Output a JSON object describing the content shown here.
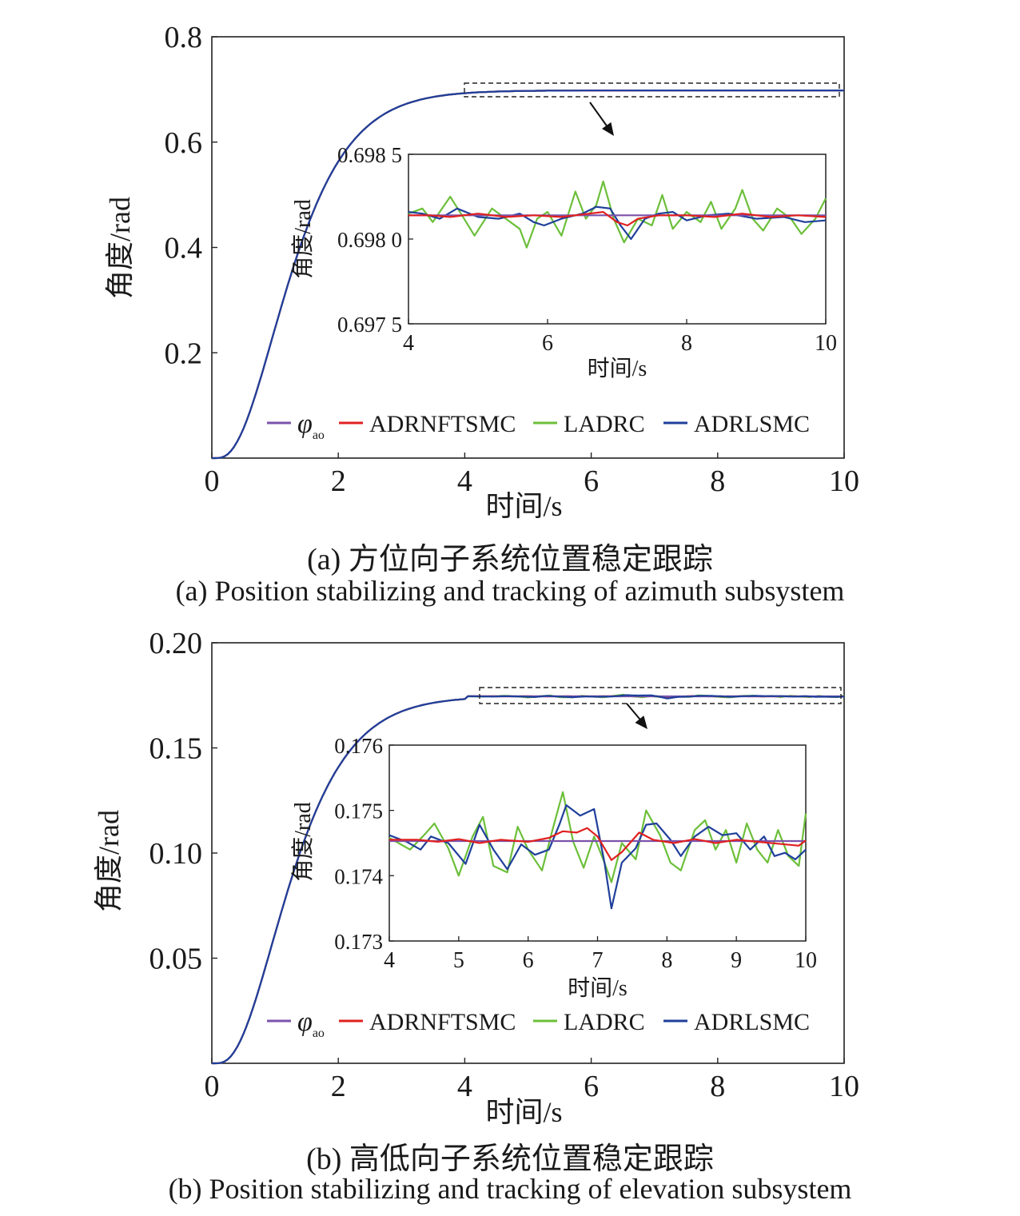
{
  "chart_data": [
    {
      "type": "line",
      "id": "a",
      "xlabel": "时间/s",
      "ylabel": "角度/rad",
      "xlim": [
        0,
        10
      ],
      "ylim": [
        0,
        0.8
      ],
      "xticks": [
        0,
        2,
        4,
        6,
        8,
        10
      ],
      "xtick_labels": [
        "0",
        "2",
        "4",
        "6",
        "8",
        "10"
      ],
      "yticks": [
        0.2,
        0.4,
        0.6,
        0.8
      ],
      "ytick_labels": [
        "0.2",
        "0.4",
        "0.6",
        "0.8"
      ],
      "final_value": 0.6981,
      "legend": [
        "φao",
        "ADRNFTSMC",
        "LADRC",
        "ADRLSMC"
      ],
      "legend_position": "bottom",
      "caption_zh": "(a) 方位向子系统位置稳定跟踪",
      "caption_en": "(a) Position stabilizing and tracking of azimuth subsystem",
      "series": [
        {
          "name": "φao",
          "color": "#7b52ab"
        },
        {
          "name": "ADRNFTSMC",
          "color": "#e02020"
        },
        {
          "name": "LADRC",
          "color": "#6cbf3a"
        },
        {
          "name": "ADRLSMC",
          "color": "#1f3f9a"
        }
      ],
      "inset": {
        "xlabel": "时间/s",
        "ylabel": "角度/rad",
        "xlim": [
          4,
          10
        ],
        "ylim": [
          0.6975,
          0.6985
        ],
        "xticks": [
          4,
          6,
          8,
          10
        ],
        "xtick_labels": [
          "4",
          "6",
          "8",
          "10"
        ],
        "yticks": [
          0.6975,
          0.698,
          0.6985
        ],
        "ytick_labels": [
          "0.697 5",
          "0.698 0",
          "0.698 5"
        ],
        "reference": 0.69814,
        "series": [
          {
            "name": "φao",
            "values": [
              [
                4,
                0.69814
              ],
              [
                10,
                0.69814
              ]
            ]
          },
          {
            "name": "ADRNFTSMC",
            "values": [
              [
                4,
                0.69814
              ],
              [
                4.3,
                0.69814
              ],
              [
                4.6,
                0.69813
              ],
              [
                5.0,
                0.69815
              ],
              [
                5.4,
                0.69813
              ],
              [
                5.8,
                0.69814
              ],
              [
                6.2,
                0.69813
              ],
              [
                6.6,
                0.69815
              ],
              [
                6.8,
                0.69816
              ],
              [
                7.0,
                0.6981
              ],
              [
                7.15,
                0.69808
              ],
              [
                7.3,
                0.69812
              ],
              [
                7.6,
                0.69814
              ],
              [
                8.0,
                0.69814
              ],
              [
                8.4,
                0.69813
              ],
              [
                8.8,
                0.69815
              ],
              [
                9.2,
                0.69813
              ],
              [
                9.6,
                0.69814
              ],
              [
                10,
                0.69813
              ]
            ]
          },
          {
            "name": "LADRC",
            "values": [
              [
                4,
                0.69815
              ],
              [
                4.2,
                0.69818
              ],
              [
                4.35,
                0.6981
              ],
              [
                4.6,
                0.69825
              ],
              [
                4.8,
                0.69812
              ],
              [
                4.95,
                0.69802
              ],
              [
                5.2,
                0.69818
              ],
              [
                5.4,
                0.69812
              ],
              [
                5.6,
                0.69806
              ],
              [
                5.7,
                0.69795
              ],
              [
                5.85,
                0.69812
              ],
              [
                6.0,
                0.69816
              ],
              [
                6.2,
                0.69802
              ],
              [
                6.4,
                0.69828
              ],
              [
                6.55,
                0.69812
              ],
              [
                6.7,
                0.6982
              ],
              [
                6.8,
                0.69834
              ],
              [
                6.95,
                0.69812
              ],
              [
                7.1,
                0.69798
              ],
              [
                7.3,
                0.69812
              ],
              [
                7.5,
                0.69808
              ],
              [
                7.65,
                0.69826
              ],
              [
                7.8,
                0.69806
              ],
              [
                8.0,
                0.69816
              ],
              [
                8.2,
                0.6981
              ],
              [
                8.35,
                0.69822
              ],
              [
                8.5,
                0.69806
              ],
              [
                8.7,
                0.69818
              ],
              [
                8.8,
                0.69829
              ],
              [
                8.95,
                0.69812
              ],
              [
                9.1,
                0.69805
              ],
              [
                9.3,
                0.69818
              ],
              [
                9.5,
                0.69812
              ],
              [
                9.65,
                0.69803
              ],
              [
                9.85,
                0.69812
              ],
              [
                10,
                0.69824
              ]
            ]
          },
          {
            "name": "ADRLSMC",
            "values": [
              [
                4,
                0.69816
              ],
              [
                4.2,
                0.69815
              ],
              [
                4.45,
                0.69812
              ],
              [
                4.7,
                0.69818
              ],
              [
                5.0,
                0.69813
              ],
              [
                5.3,
                0.69812
              ],
              [
                5.6,
                0.69815
              ],
              [
                5.8,
                0.6981
              ],
              [
                5.95,
                0.69808
              ],
              [
                6.2,
                0.69812
              ],
              [
                6.5,
                0.69815
              ],
              [
                6.7,
                0.69819
              ],
              [
                6.9,
                0.69818
              ],
              [
                7.05,
                0.69808
              ],
              [
                7.2,
                0.698
              ],
              [
                7.4,
                0.69812
              ],
              [
                7.6,
                0.69815
              ],
              [
                7.8,
                0.69816
              ],
              [
                8.0,
                0.69811
              ],
              [
                8.3,
                0.69814
              ],
              [
                8.6,
                0.69815
              ],
              [
                9.0,
                0.69812
              ],
              [
                9.4,
                0.69813
              ],
              [
                9.7,
                0.6981
              ],
              [
                10,
                0.69811
              ]
            ]
          }
        ]
      }
    },
    {
      "type": "line",
      "id": "b",
      "xlabel": "时间/s",
      "ylabel": "角度/rad",
      "xlim": [
        0,
        10
      ],
      "ylim": [
        0,
        0.2
      ],
      "xticks": [
        0,
        2,
        4,
        6,
        8,
        10
      ],
      "xtick_labels": [
        "0",
        "2",
        "4",
        "6",
        "8",
        "10"
      ],
      "yticks": [
        0.05,
        0.1,
        0.15,
        0.2
      ],
      "ytick_labels": [
        "0.05",
        "0.10",
        "0.15",
        "0.20"
      ],
      "final_value": 0.17453,
      "legend": [
        "φao",
        "ADRNFTSMC",
        "LADRC",
        "ADRLSMC"
      ],
      "legend_position": "bottom",
      "caption_zh": "(b) 高低向子系统位置稳定跟踪",
      "caption_en": "(b) Position stabilizing and tracking of elevation subsystem",
      "series": [
        {
          "name": "φao",
          "color": "#7b52ab"
        },
        {
          "name": "ADRNFTSMC",
          "color": "#e02020"
        },
        {
          "name": "LADRC",
          "color": "#6cbf3a"
        },
        {
          "name": "ADRLSMC",
          "color": "#1f3f9a"
        }
      ],
      "inset": {
        "xlabel": "时间/s",
        "ylabel": "角度/rad",
        "xlim": [
          4,
          10
        ],
        "ylim": [
          0.173,
          0.176
        ],
        "xticks": [
          4,
          5,
          6,
          7,
          8,
          9,
          10
        ],
        "xtick_labels": [
          "4",
          "5",
          "6",
          "7",
          "8",
          "9",
          "10"
        ],
        "yticks": [
          0.173,
          0.174,
          0.175,
          0.176
        ],
        "ytick_labels": [
          "0.173",
          "0.174",
          "0.175",
          "0.176"
        ],
        "reference": 0.17453,
        "series": [
          {
            "name": "φao",
            "values": [
              [
                4,
                0.17453
              ],
              [
                10,
                0.17453
              ]
            ]
          },
          {
            "name": "ADRNFTSMC",
            "values": [
              [
                4,
                0.17455
              ],
              [
                4.4,
                0.17455
              ],
              [
                4.7,
                0.17452
              ],
              [
                5.0,
                0.17456
              ],
              [
                5.3,
                0.1745
              ],
              [
                5.6,
                0.17455
              ],
              [
                6.0,
                0.17452
              ],
              [
                6.3,
                0.17458
              ],
              [
                6.5,
                0.17468
              ],
              [
                6.7,
                0.17466
              ],
              [
                6.85,
                0.17473
              ],
              [
                7.0,
                0.1746
              ],
              [
                7.2,
                0.17424
              ],
              [
                7.35,
                0.17436
              ],
              [
                7.6,
                0.17466
              ],
              [
                7.8,
                0.17455
              ],
              [
                8.1,
                0.1745
              ],
              [
                8.4,
                0.17456
              ],
              [
                8.7,
                0.1745
              ],
              [
                9.0,
                0.17455
              ],
              [
                9.3,
                0.17452
              ],
              [
                9.6,
                0.17449
              ],
              [
                9.9,
                0.17446
              ],
              [
                10,
                0.17454
              ]
            ]
          },
          {
            "name": "LADRC",
            "values": [
              [
                4,
                0.17458
              ],
              [
                4.3,
                0.1744
              ],
              [
                4.5,
                0.17462
              ],
              [
                4.65,
                0.1748
              ],
              [
                4.85,
                0.17442
              ],
              [
                5.0,
                0.174
              ],
              [
                5.2,
                0.1746
              ],
              [
                5.35,
                0.1749
              ],
              [
                5.5,
                0.17415
              ],
              [
                5.7,
                0.17405
              ],
              [
                5.85,
                0.17475
              ],
              [
                6.0,
                0.1744
              ],
              [
                6.2,
                0.17408
              ],
              [
                6.35,
                0.1747
              ],
              [
                6.5,
                0.17528
              ],
              [
                6.65,
                0.17452
              ],
              [
                6.8,
                0.17412
              ],
              [
                6.95,
                0.1746
              ],
              [
                7.1,
                0.1742
              ],
              [
                7.2,
                0.1739
              ],
              [
                7.35,
                0.1745
              ],
              [
                7.55,
                0.17425
              ],
              [
                7.7,
                0.175
              ],
              [
                7.9,
                0.17462
              ],
              [
                8.05,
                0.1742
              ],
              [
                8.2,
                0.17408
              ],
              [
                8.4,
                0.1747
              ],
              [
                8.55,
                0.17485
              ],
              [
                8.7,
                0.1744
              ],
              [
                8.85,
                0.1747
              ],
              [
                9.0,
                0.1742
              ],
              [
                9.15,
                0.1748
              ],
              [
                9.3,
                0.1744
              ],
              [
                9.45,
                0.1742
              ],
              [
                9.6,
                0.1747
              ],
              [
                9.75,
                0.1743
              ],
              [
                9.9,
                0.17415
              ],
              [
                10,
                0.17495
              ]
            ]
          },
          {
            "name": "ADRLSMC",
            "values": [
              [
                4,
                0.17462
              ],
              [
                4.25,
                0.17452
              ],
              [
                4.45,
                0.1744
              ],
              [
                4.6,
                0.1746
              ],
              [
                4.85,
                0.1745
              ],
              [
                5.1,
                0.17418
              ],
              [
                5.3,
                0.17478
              ],
              [
                5.5,
                0.1744
              ],
              [
                5.7,
                0.1741
              ],
              [
                5.9,
                0.17448
              ],
              [
                6.1,
                0.17432
              ],
              [
                6.3,
                0.1744
              ],
              [
                6.45,
                0.17478
              ],
              [
                6.55,
                0.17508
              ],
              [
                6.75,
                0.17492
              ],
              [
                6.95,
                0.17502
              ],
              [
                7.1,
                0.1742
              ],
              [
                7.2,
                0.1735
              ],
              [
                7.35,
                0.1742
              ],
              [
                7.55,
                0.17442
              ],
              [
                7.7,
                0.17478
              ],
              [
                7.85,
                0.1748
              ],
              [
                8.05,
                0.17455
              ],
              [
                8.2,
                0.1743
              ],
              [
                8.4,
                0.1746
              ],
              [
                8.6,
                0.17475
              ],
              [
                8.8,
                0.17462
              ],
              [
                9.0,
                0.17465
              ],
              [
                9.2,
                0.1744
              ],
              [
                9.4,
                0.1746
              ],
              [
                9.55,
                0.1743
              ],
              [
                9.7,
                0.17435
              ],
              [
                9.85,
                0.17425
              ],
              [
                10,
                0.1744
              ]
            ]
          }
        ]
      }
    }
  ]
}
